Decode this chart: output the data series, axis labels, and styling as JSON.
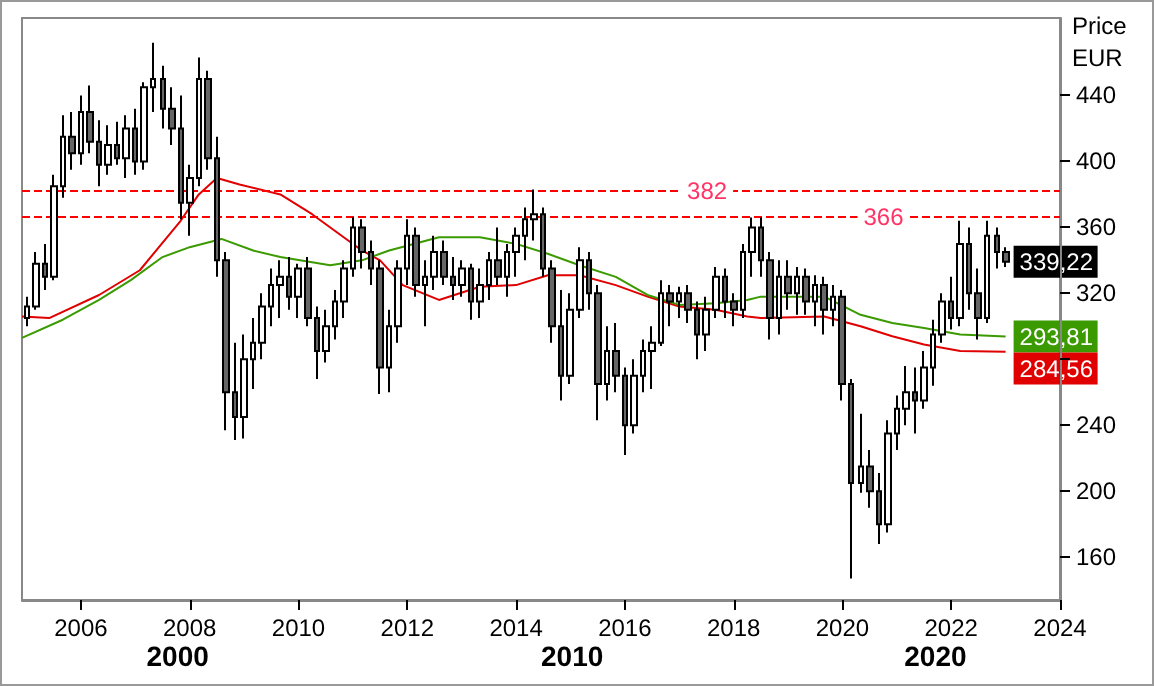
{
  "chart_data": {
    "type": "candlestick",
    "ylabel": "Price EUR",
    "annotations": [
      "2000",
      "2010",
      "2020"
    ],
    "xlim": [
      "2004-12",
      "2024-01"
    ],
    "xticks": [
      "2006",
      "2008",
      "2010",
      "2012",
      "2014",
      "2016",
      "2018",
      "2020",
      "2022",
      "2024"
    ],
    "ylim": [
      134,
      487
    ],
    "yticks": [
      160,
      200,
      240,
      {
        "value": 280,
        "label": null
      },
      320,
      360,
      400,
      440
    ],
    "grid": false,
    "ref_lines": [
      {
        "axis": "y",
        "value": 382,
        "label": "382",
        "color": "#ff0000",
        "line_style": "dashed"
      },
      {
        "axis": "y",
        "value": 366,
        "label": "366",
        "color": "#ff0000",
        "line_style": "dashed"
      }
    ],
    "series": [
      {
        "color": "#000000",
        "x": [
          "2005-01",
          "2005-03",
          "2005-05",
          "2005-07",
          "2005-09",
          "2005-11",
          "2006-01",
          "2006-03",
          "2006-05",
          "2006-07",
          "2006-09",
          "2006-11",
          "2007-01",
          "2007-03",
          "2007-05",
          "2007-07",
          "2007-09",
          "2007-11",
          "2008-01",
          "2008-03",
          "2008-05",
          "2008-07",
          "2008-09",
          "2008-11",
          "2009-01",
          "2009-03",
          "2009-05",
          "2009-07",
          "2009-09",
          "2009-11",
          "2010-01",
          "2010-03",
          "2010-05",
          "2010-07",
          "2010-09",
          "2010-11",
          "2011-01",
          "2011-03",
          "2011-05",
          "2011-07",
          "2011-09",
          "2011-11",
          "2012-01",
          "2012-03",
          "2012-05",
          "2012-07",
          "2012-09",
          "2012-11",
          "2013-01",
          "2013-03",
          "2013-05",
          "2013-07",
          "2013-09",
          "2013-11",
          "2014-01",
          "2014-03",
          "2014-05",
          "2014-07",
          "2014-09",
          "2014-11",
          "2015-01",
          "2015-03",
          "2015-05",
          "2015-07",
          "2015-09",
          "2015-11",
          "2016-01",
          "2016-03",
          "2016-05",
          "2016-07",
          "2016-09",
          "2016-11",
          "2017-01",
          "2017-03",
          "2017-05",
          "2017-07",
          "2017-09",
          "2017-11",
          "2018-01",
          "2018-03",
          "2018-05",
          "2018-07",
          "2018-09",
          "2018-11",
          "2019-01",
          "2019-03",
          "2019-05",
          "2019-07",
          "2019-09",
          "2019-11",
          "2020-01",
          "2020-03",
          "2020-05",
          "2020-07",
          "2020-09",
          "2020-11",
          "2021-01",
          "2021-03",
          "2021-05",
          "2021-07",
          "2021-09",
          "2021-11",
          "2022-01",
          "2022-03",
          "2022-05",
          "2022-07",
          "2022-09",
          "2022-11",
          "2023-01"
        ],
        "ohlc": [
          [
            305,
            318,
            300,
            312
          ],
          [
            312,
            345,
            310,
            338
          ],
          [
            338,
            350,
            322,
            330
          ],
          [
            330,
            392,
            328,
            385
          ],
          [
            385,
            428,
            378,
            415
          ],
          [
            415,
            430,
            395,
            405
          ],
          [
            405,
            440,
            398,
            430
          ],
          [
            430,
            446,
            405,
            412
          ],
          [
            412,
            425,
            385,
            398
          ],
          [
            398,
            422,
            392,
            410
          ],
          [
            410,
            424,
            398,
            402
          ],
          [
            402,
            428,
            390,
            420
          ],
          [
            420,
            432,
            392,
            400
          ],
          [
            400,
            448,
            395,
            445
          ],
          [
            445,
            472,
            430,
            450
          ],
          [
            450,
            458,
            420,
            432
          ],
          [
            432,
            445,
            410,
            420
          ],
          [
            420,
            440,
            365,
            375
          ],
          [
            375,
            398,
            355,
            390
          ],
          [
            390,
            463,
            385,
            450
          ],
          [
            450,
            455,
            395,
            402
          ],
          [
            402,
            415,
            330,
            340
          ],
          [
            340,
            345,
            237,
            260
          ],
          [
            260,
            290,
            231,
            245
          ],
          [
            245,
            295,
            232,
            280
          ],
          [
            280,
            305,
            262,
            290
          ],
          [
            290,
            320,
            280,
            312
          ],
          [
            312,
            335,
            300,
            325
          ],
          [
            325,
            340,
            305,
            330
          ],
          [
            330,
            342,
            310,
            318
          ],
          [
            318,
            338,
            305,
            335
          ],
          [
            335,
            342,
            300,
            305
          ],
          [
            305,
            312,
            268,
            285
          ],
          [
            285,
            310,
            278,
            300
          ],
          [
            300,
            322,
            292,
            315
          ],
          [
            315,
            340,
            305,
            335
          ],
          [
            335,
            366,
            330,
            360
          ],
          [
            360,
            365,
            335,
            345
          ],
          [
            345,
            352,
            325,
            335
          ],
          [
            335,
            340,
            259,
            275
          ],
          [
            275,
            310,
            260,
            300
          ],
          [
            300,
            340,
            290,
            335
          ],
          [
            335,
            365,
            325,
            355
          ],
          [
            355,
            360,
            318,
            325
          ],
          [
            325,
            340,
            300,
            330
          ],
          [
            330,
            355,
            322,
            345
          ],
          [
            345,
            352,
            325,
            330
          ],
          [
            330,
            342,
            316,
            325
          ],
          [
            325,
            340,
            318,
            335
          ],
          [
            335,
            338,
            304,
            315
          ],
          [
            315,
            335,
            305,
            325
          ],
          [
            325,
            345,
            316,
            340
          ],
          [
            340,
            360,
            325,
            330
          ],
          [
            330,
            350,
            318,
            345
          ],
          [
            345,
            360,
            330,
            355
          ],
          [
            355,
            372,
            340,
            365
          ],
          [
            365,
            383,
            352,
            368
          ],
          [
            368,
            372,
            330,
            335
          ],
          [
            335,
            340,
            290,
            300
          ],
          [
            300,
            322,
            255,
            270
          ],
          [
            270,
            320,
            265,
            310
          ],
          [
            310,
            348,
            305,
            340
          ],
          [
            340,
            345,
            310,
            320
          ],
          [
            320,
            325,
            243,
            265
          ],
          [
            265,
            300,
            255,
            285
          ],
          [
            285,
            302,
            260,
            270
          ],
          [
            270,
            275,
            222,
            240
          ],
          [
            240,
            280,
            235,
            270
          ],
          [
            270,
            292,
            260,
            285
          ],
          [
            285,
            300,
            262,
            290
          ],
          [
            290,
            328,
            288,
            320
          ],
          [
            320,
            325,
            300,
            315
          ],
          [
            315,
            324,
            305,
            320
          ],
          [
            320,
            325,
            302,
            310
          ],
          [
            310,
            315,
            280,
            295
          ],
          [
            295,
            318,
            285,
            310
          ],
          [
            310,
            336,
            305,
            330
          ],
          [
            330,
            335,
            305,
            315
          ],
          [
            315,
            320,
            300,
            310
          ],
          [
            310,
            350,
            305,
            345
          ],
          [
            345,
            366,
            330,
            360
          ],
          [
            360,
            366,
            330,
            340
          ],
          [
            340,
            345,
            292,
            305
          ],
          [
            305,
            340,
            295,
            330
          ],
          [
            330,
            340,
            310,
            320
          ],
          [
            320,
            336,
            307,
            330
          ],
          [
            330,
            335,
            307,
            315
          ],
          [
            315,
            331,
            300,
            325
          ],
          [
            325,
            330,
            295,
            310
          ],
          [
            310,
            325,
            300,
            318
          ],
          [
            318,
            322,
            255,
            265
          ],
          [
            265,
            268,
            147,
            205
          ],
          [
            205,
            247,
            199,
            215
          ],
          [
            215,
            225,
            190,
            200
          ],
          [
            200,
            211,
            168,
            180
          ],
          [
            180,
            243,
            175,
            235
          ],
          [
            235,
            258,
            225,
            250
          ],
          [
            250,
            276,
            240,
            260
          ],
          [
            260,
            275,
            235,
            255
          ],
          [
            255,
            285,
            250,
            275
          ],
          [
            275,
            304,
            264,
            295
          ],
          [
            295,
            320,
            290,
            315
          ],
          [
            315,
            330,
            298,
            305
          ],
          [
            305,
            364,
            300,
            350
          ],
          [
            350,
            360,
            310,
            320
          ],
          [
            320,
            335,
            292,
            305
          ],
          [
            305,
            364,
            302,
            355
          ],
          [
            355,
            360,
            335,
            345
          ],
          [
            345,
            348,
            336,
            339.22
          ]
        ],
        "value_labels": [
          null,
          null,
          null,
          null,
          null,
          null,
          null,
          null,
          null,
          null,
          null,
          null,
          null,
          null,
          null,
          null,
          null,
          null,
          null,
          null,
          null,
          null,
          null,
          null,
          null,
          null,
          null,
          null,
          null,
          null,
          null,
          null,
          null,
          null,
          null,
          null,
          null,
          null,
          null,
          null,
          null,
          null,
          null,
          null,
          null,
          null,
          null,
          null,
          null,
          null,
          null,
          null,
          null,
          null,
          null,
          null,
          null,
          null,
          null,
          null,
          null,
          null,
          null,
          null,
          null,
          null,
          null,
          null,
          null,
          null,
          null,
          null,
          null,
          null,
          null,
          null,
          null,
          null,
          null,
          null,
          null,
          null,
          null,
          null,
          null,
          null,
          null,
          null,
          null,
          null,
          null,
          null,
          null,
          null,
          null,
          null,
          null,
          null,
          null,
          null,
          null,
          null,
          null,
          null,
          null,
          null,
          null,
          null,
          "339,22"
        ]
      },
      {
        "type": "line",
        "color": "#e00000",
        "x": [
          "2004-12",
          "2005-06",
          "2006-05",
          "2007-02",
          "2007-11",
          "2008-03",
          "2008-07",
          "2008-12",
          "2009-09",
          "2010-04",
          "2010-09",
          "2011-03",
          "2011-07",
          "2011-12",
          "2012-08",
          "2013-05",
          "2014-01",
          "2014-08",
          "2015-03",
          "2015-11",
          "2016-06",
          "2017-01",
          "2017-09",
          "2018-04",
          "2018-07",
          "2019-09",
          "2020-05",
          "2020-12",
          "2021-07",
          "2022-03",
          "2023-01"
        ],
        "values": [
          306,
          305,
          319,
          334,
          364,
          380,
          390,
          386,
          380,
          368,
          358,
          346,
          340,
          325,
          316,
          324,
          325,
          331,
          331,
          325,
          318,
          312,
          310,
          306,
          305,
          306,
          300,
          294,
          289,
          285,
          284.56
        ],
        "value_labels": [
          null,
          null,
          null,
          null,
          null,
          null,
          null,
          null,
          null,
          null,
          null,
          null,
          null,
          null,
          null,
          null,
          null,
          null,
          null,
          null,
          null,
          null,
          null,
          null,
          null,
          null,
          null,
          null,
          null,
          null,
          "284,56"
        ]
      },
      {
        "type": "line",
        "color": "#3a9a00",
        "x": [
          "2004-12",
          "2005-09",
          "2006-05",
          "2006-12",
          "2007-07",
          "2008-01",
          "2008-08",
          "2009-03",
          "2009-09",
          "2010-08",
          "2011-03",
          "2011-09",
          "2012-08",
          "2013-05",
          "2014-01",
          "2014-08",
          "2015-03",
          "2015-11",
          "2016-06",
          "2017-01",
          "2017-09",
          "2018-04",
          "2018-07",
          "2019-09",
          "2020-05",
          "2020-12",
          "2021-07",
          "2022-03",
          "2023-01"
        ],
        "values": [
          293,
          304,
          316,
          328,
          342,
          348,
          353,
          346,
          342,
          337,
          340,
          346,
          354,
          354,
          350,
          344,
          337,
          330,
          319,
          313,
          314,
          316,
          318,
          318,
          307,
          302,
          299,
          295,
          293.81
        ],
        "value_labels": [
          null,
          null,
          null,
          null,
          null,
          null,
          null,
          null,
          null,
          null,
          null,
          null,
          null,
          null,
          null,
          null,
          null,
          null,
          null,
          null,
          null,
          null,
          null,
          null,
          null,
          null,
          null,
          null,
          "293,81"
        ]
      }
    ]
  }
}
